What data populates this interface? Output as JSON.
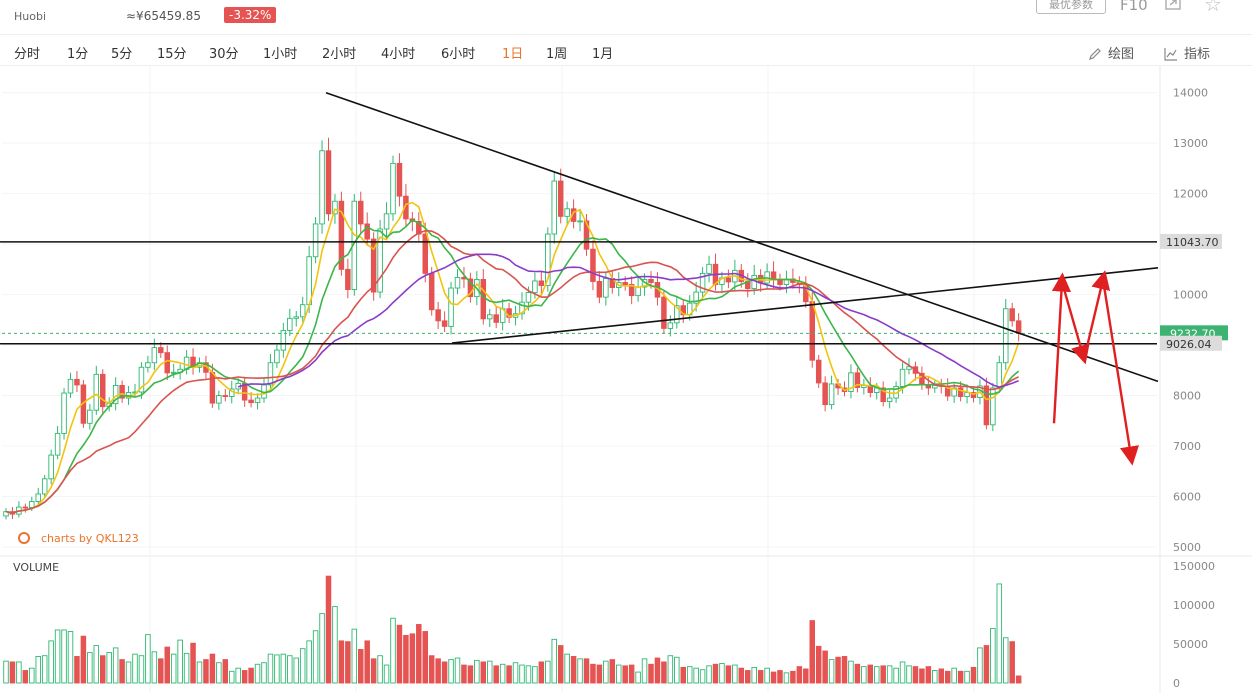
{
  "header": {
    "exchange": "Huobi",
    "cny_price": "≈¥65459.85",
    "change": "-3.32%",
    "params_label": "最优参数",
    "f10_label": "F10"
  },
  "toolbar": {
    "intervals": [
      "分时",
      "1分",
      "5分",
      "15分",
      "30分",
      "1小时",
      "2小时",
      "4小时",
      "6小时",
      "1日",
      "1周",
      "1月"
    ],
    "active_interval": "1日",
    "draw_label": "绘图",
    "indicator_label": "指标"
  },
  "colors": {
    "up": "#e55353",
    "down": "#2eb872",
    "ma_yellow": "#f2c40f",
    "ma_green": "#3cb54a",
    "ma_red": "#d9534f",
    "ma_purple": "#8a3cc9",
    "arrow": "#e02020",
    "current_badge": "#3cb371",
    "accent": "#e8742d"
  },
  "chart_data": {
    "type": "candlestick",
    "watermark": "charts by QKL123",
    "price_axis": {
      "ticks": [
        14000,
        13000,
        12000,
        11000,
        10000,
        9000,
        8000,
        7000,
        6000,
        5000
      ],
      "range": [
        4900,
        14450
      ]
    },
    "volume_label": "VOLUME",
    "volume_axis": {
      "ticks": [
        150000,
        100000,
        50000,
        0
      ],
      "range": [
        0,
        150000
      ]
    },
    "price_levels": [
      {
        "label": "11043.70",
        "value": 11043.7
      },
      {
        "label": "9232.70",
        "value": 9232.7,
        "current": true
      },
      {
        "label": "9026.04",
        "value": 9026.04
      }
    ],
    "closes": [
      5700,
      5650,
      5790,
      5780,
      5900,
      6050,
      6350,
      6820,
      7250,
      8050,
      8320,
      8210,
      7450,
      7710,
      8420,
      7780,
      7840,
      8200,
      7950,
      8060,
      8070,
      8560,
      8650,
      8950,
      8850,
      8450,
      8460,
      8520,
      8760,
      8560,
      8650,
      8460,
      7850,
      8000,
      7980,
      8130,
      8240,
      7910,
      7860,
      7950,
      8210,
      8650,
      8900,
      9290,
      9530,
      9560,
      9800,
      10750,
      11400,
      12850,
      11600,
      11850,
      10500,
      10100,
      11850,
      11400,
      11100,
      10050,
      11300,
      11600,
      12600,
      11950,
      11500,
      11450,
      11200,
      10420,
      9700,
      9480,
      9370,
      10130,
      10340,
      10310,
      9960,
      10300,
      9520,
      9600,
      9450,
      9720,
      9550,
      9620,
      9850,
      10040,
      10270,
      10180,
      11200,
      12250,
      11550,
      11700,
      11450,
      11460,
      10900,
      10260,
      9950,
      10320,
      10140,
      10240,
      10200,
      9980,
      10150,
      10300,
      10240,
      9950,
      9330,
      9440,
      9780,
      9600,
      9830,
      10050,
      10420,
      10600,
      10200,
      10330,
      10250,
      10480,
      10260,
      10120,
      10380,
      10230,
      10450,
      10290,
      10200,
      10310,
      10240,
      10200,
      9860,
      8700,
      8250,
      7820,
      8230,
      8150,
      8080,
      8450,
      8160,
      8200,
      8060,
      8150,
      7880,
      7950,
      8180,
      8520,
      8570,
      8440,
      8210,
      8150,
      8200,
      8180,
      7990,
      8150,
      7980,
      8060,
      7960,
      8190,
      7420,
      8150,
      8650,
      9720,
      9480,
      9232
    ],
    "volume": [
      28000,
      27000,
      27000,
      16000,
      19000,
      34000,
      35000,
      54000,
      68000,
      68000,
      66000,
      34000,
      60000,
      39000,
      48000,
      35000,
      39000,
      45000,
      30000,
      27000,
      37000,
      35000,
      62000,
      40000,
      31000,
      46000,
      37000,
      55000,
      38000,
      51000,
      27000,
      30000,
      37000,
      26000,
      30000,
      15000,
      19000,
      16000,
      19000,
      24000,
      26000,
      37000,
      36000,
      37000,
      35000,
      32000,
      44000,
      54000,
      67000,
      89000,
      137000,
      98000,
      54000,
      53000,
      69000,
      43000,
      54000,
      31000,
      35000,
      23000,
      83000,
      74000,
      61000,
      63000,
      75000,
      66000,
      35000,
      31000,
      27000,
      30000,
      32000,
      23000,
      22000,
      29000,
      27000,
      28000,
      22000,
      24000,
      22000,
      26000,
      23000,
      22000,
      21000,
      27000,
      28000,
      56000,
      48000,
      37000,
      34000,
      31000,
      31000,
      24000,
      23000,
      28000,
      30000,
      23000,
      22000,
      23000,
      14000,
      31000,
      24000,
      32000,
      27000,
      35000,
      33000,
      20000,
      21000,
      19000,
      17000,
      22000,
      24000,
      25000,
      22000,
      23000,
      19000,
      16000,
      20000,
      16000,
      19000,
      14000,
      16000,
      13000,
      15000,
      21000,
      18000,
      80000,
      47000,
      41000,
      30000,
      33000,
      34000,
      28000,
      24000,
      21000,
      23000,
      21000,
      22000,
      22000,
      19000,
      27000,
      22000,
      21000,
      18000,
      21000,
      16000,
      18000,
      15000,
      19000,
      15000,
      15000,
      20000,
      45000,
      48000,
      70000,
      127000,
      58000,
      53000,
      9000
    ]
  }
}
